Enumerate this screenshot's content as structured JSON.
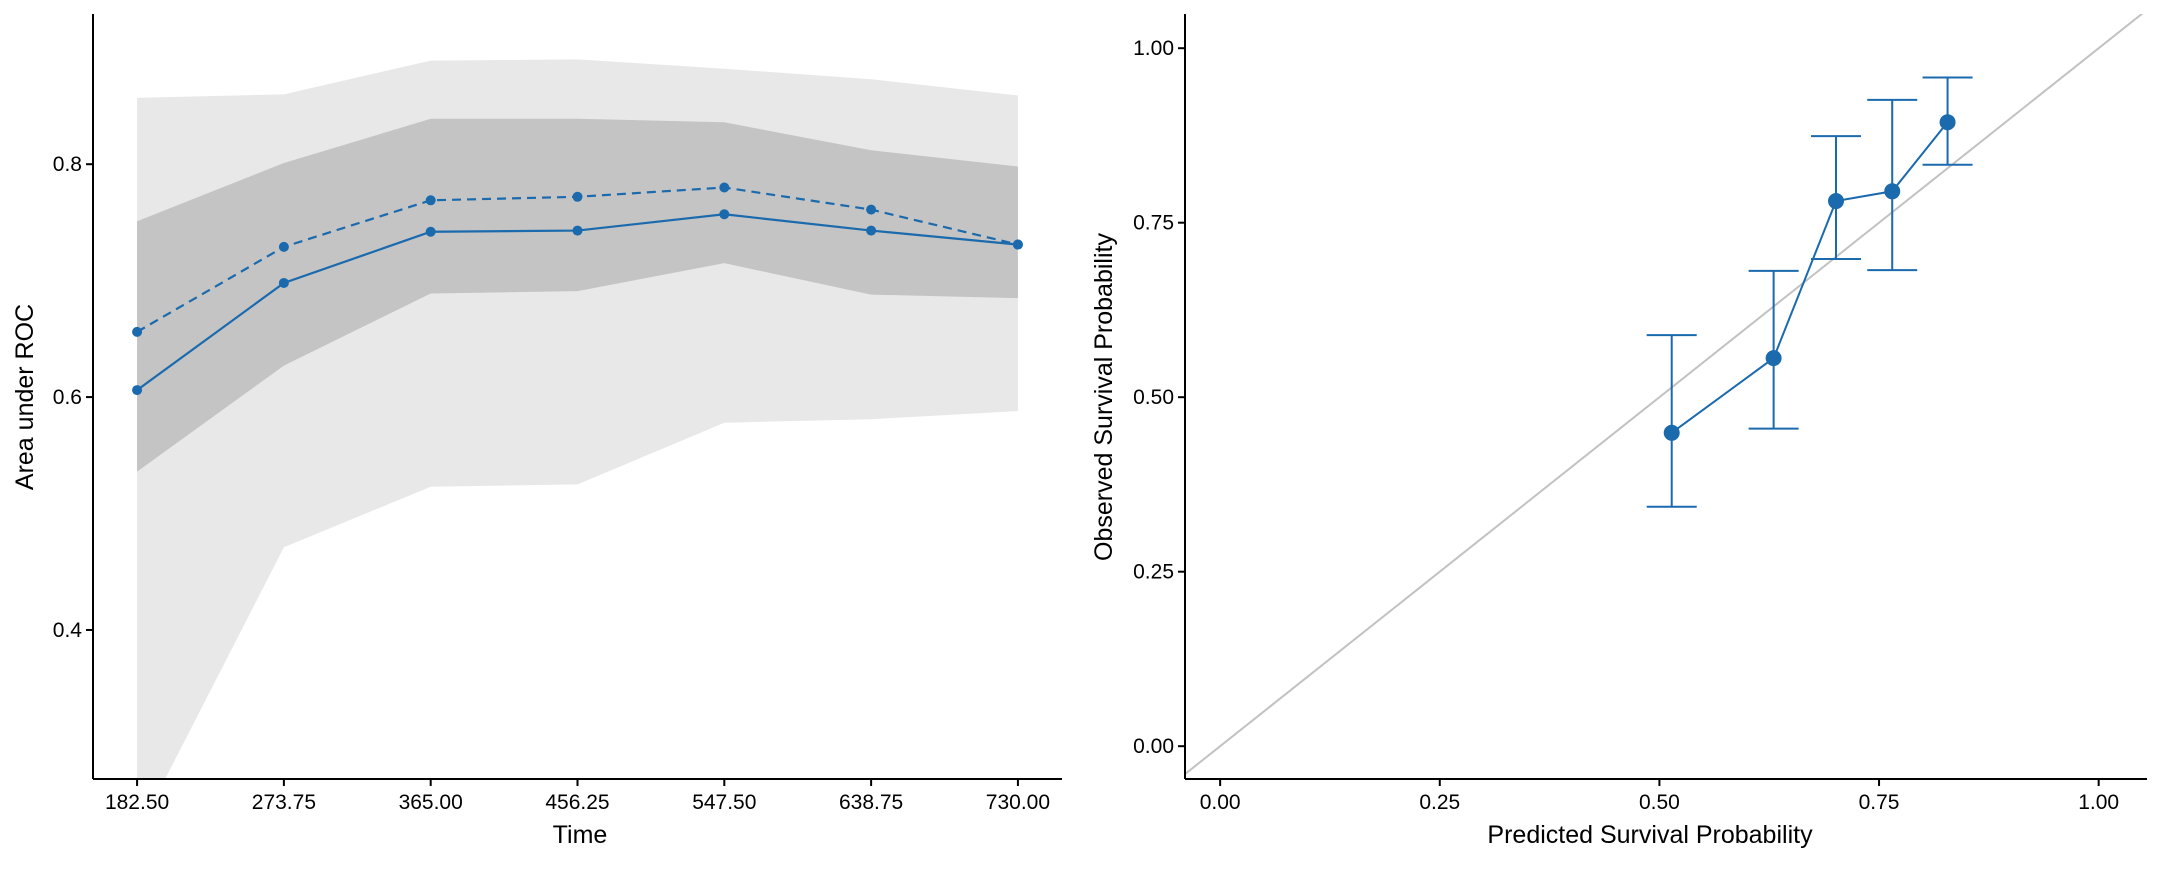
{
  "colors": {
    "series": "#1a6aad",
    "band_outer": "#e8e8e8",
    "band_inner": "#c4c4c4",
    "reference_line": "#c2c2c2",
    "axis": "#000000"
  },
  "chart_data": [
    {
      "type": "line",
      "title": "",
      "xlabel": "Time",
      "ylabel": "Area under ROC",
      "xlim": [
        155.1,
        757.4
      ],
      "ylim": [
        0.272,
        0.929
      ],
      "x": [
        182.5,
        273.75,
        365.0,
        456.25,
        547.5,
        638.75,
        730.0
      ],
      "x_tick_labels": [
        "182.50",
        "273.75",
        "365.00",
        "456.25",
        "547.50",
        "638.75",
        "730.00"
      ],
      "y_ticks": [
        0.4,
        0.6,
        0.8
      ],
      "y_tick_labels": [
        "0.4",
        "0.6",
        "0.8"
      ],
      "grid": false,
      "series": [
        {
          "style": "solid",
          "values": [
            0.606,
            0.698,
            0.742,
            0.743,
            0.757,
            0.743,
            0.731
          ]
        },
        {
          "style": "dashed",
          "values": [
            0.656,
            0.729,
            0.769,
            0.772,
            0.78,
            0.761,
            0.731
          ]
        }
      ],
      "bands": [
        {
          "level": "outer",
          "lower": [
            0.225,
            0.471,
            0.523,
            0.525,
            0.578,
            0.581,
            0.588
          ],
          "upper": [
            0.857,
            0.86,
            0.889,
            0.89,
            0.882,
            0.873,
            0.859
          ]
        },
        {
          "level": "inner",
          "lower": [
            0.536,
            0.627,
            0.689,
            0.691,
            0.715,
            0.688,
            0.685
          ],
          "upper": [
            0.751,
            0.801,
            0.839,
            0.839,
            0.836,
            0.812,
            0.798
          ]
        }
      ]
    },
    {
      "type": "scatter",
      "title": "",
      "xlabel": "Predicted Survival Probability",
      "ylabel": "Observed Survival Probability",
      "xlim": [
        -0.04,
        1.055
      ],
      "ylim": [
        -0.047,
        1.049
      ],
      "x_ticks": [
        0,
        0.25,
        0.5,
        0.75,
        1.0
      ],
      "x_tick_labels": [
        "0.00",
        "0.25",
        "0.50",
        "0.75",
        "1.00"
      ],
      "y_ticks": [
        0,
        0.25,
        0.5,
        0.75,
        1.0
      ],
      "y_tick_labels": [
        "0.00",
        "0.25",
        "0.50",
        "0.75",
        "1.00"
      ],
      "grid": false,
      "reference_line": "y = x",
      "points": [
        {
          "x": 0.514,
          "y": 0.449,
          "lower": 0.343,
          "upper": 0.589
        },
        {
          "x": 0.63,
          "y": 0.556,
          "lower": 0.455,
          "upper": 0.681
        },
        {
          "x": 0.701,
          "y": 0.781,
          "lower": 0.698,
          "upper": 0.874
        },
        {
          "x": 0.765,
          "y": 0.795,
          "lower": 0.682,
          "upper": 0.926
        },
        {
          "x": 0.828,
          "y": 0.894,
          "lower": 0.833,
          "upper": 0.958
        }
      ]
    }
  ]
}
